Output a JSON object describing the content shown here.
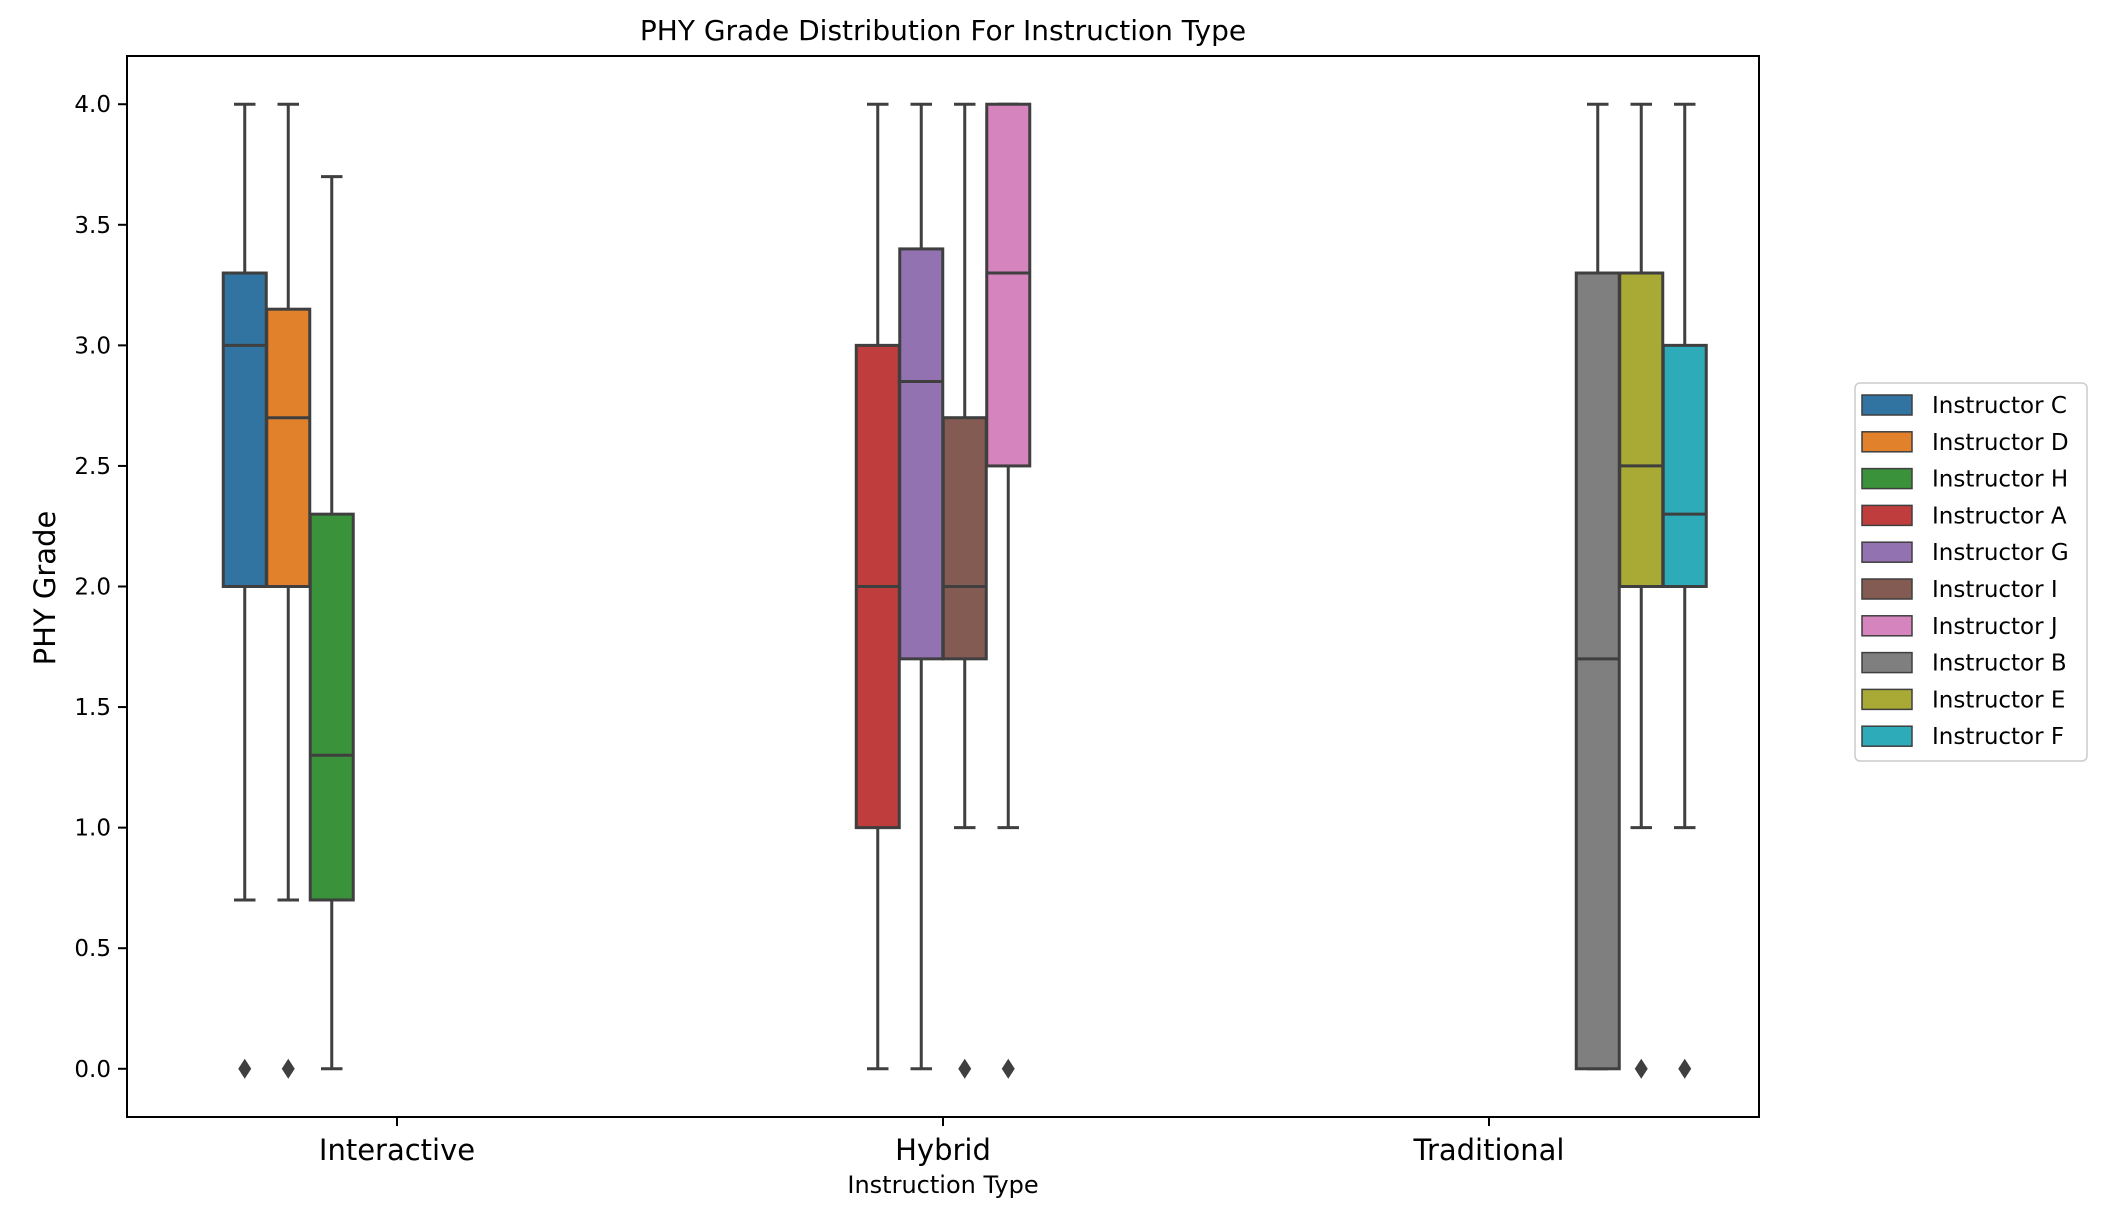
{
  "chart_data": {
    "type": "box",
    "title": "PHY Grade Distribution For Instruction Type",
    "xlabel": "Instruction Type",
    "ylabel": "PHY Grade",
    "ylim": [
      -0.2,
      4.2
    ],
    "yticks": [
      "0.0",
      "0.5",
      "1.0",
      "1.5",
      "2.0",
      "2.5",
      "3.0",
      "3.5",
      "4.0"
    ],
    "categories": [
      "Interactive",
      "Hybrid",
      "Traditional"
    ],
    "legend_position": "right",
    "grid": false,
    "series": [
      {
        "name": "Instructor C",
        "color": "#3274a1",
        "category": "Interactive",
        "offset": -3.5,
        "whisker_low": 0.7,
        "q1": 2.0,
        "median": 3.0,
        "q3": 3.3,
        "whisker_high": 4.0,
        "outliers": [
          0.0
        ]
      },
      {
        "name": "Instructor D",
        "color": "#e1812c",
        "category": "Interactive",
        "offset": -2.5,
        "whisker_low": 0.7,
        "q1": 2.0,
        "median": 2.7,
        "q3": 3.15,
        "whisker_high": 4.0,
        "outliers": [
          0.0
        ]
      },
      {
        "name": "Instructor H",
        "color": "#3a923a",
        "category": "Interactive",
        "offset": -1.5,
        "whisker_low": 0.0,
        "q1": 0.7,
        "median": 1.3,
        "q3": 2.3,
        "whisker_high": 3.7,
        "outliers": []
      },
      {
        "name": "Instructor A",
        "color": "#c03d3e",
        "category": "Hybrid",
        "offset": -1.5,
        "whisker_low": 0.0,
        "q1": 1.0,
        "median": 2.0,
        "q3": 3.0,
        "whisker_high": 4.0,
        "outliers": []
      },
      {
        "name": "Instructor G",
        "color": "#9372b2",
        "category": "Hybrid",
        "offset": -0.5,
        "whisker_low": 0.0,
        "q1": 1.7,
        "median": 2.85,
        "q3": 3.4,
        "whisker_high": 4.0,
        "outliers": []
      },
      {
        "name": "Instructor I",
        "color": "#845b53",
        "category": "Hybrid",
        "offset": 0.5,
        "whisker_low": 1.0,
        "q1": 1.7,
        "median": 2.0,
        "q3": 2.7,
        "whisker_high": 4.0,
        "outliers": [
          0.0
        ]
      },
      {
        "name": "Instructor J",
        "color": "#d684bd",
        "category": "Hybrid",
        "offset": 1.5,
        "whisker_low": 1.0,
        "q1": 2.5,
        "median": 3.3,
        "q3": 4.0,
        "whisker_high": 4.0,
        "outliers": [
          0.0
        ]
      },
      {
        "name": "Instructor B",
        "color": "#7f7f7f",
        "category": "Traditional",
        "offset": 2.5,
        "whisker_low": 0.0,
        "q1": 0.0,
        "median": 1.7,
        "q3": 3.3,
        "whisker_high": 4.0,
        "outliers": []
      },
      {
        "name": "Instructor E",
        "color": "#a9aa35",
        "category": "Traditional",
        "offset": 3.5,
        "whisker_low": 1.0,
        "q1": 2.0,
        "median": 2.5,
        "q3": 3.3,
        "whisker_high": 4.0,
        "outliers": [
          0.0
        ]
      },
      {
        "name": "Instructor F",
        "color": "#2eabb8",
        "category": "Traditional",
        "offset": 4.5,
        "whisker_low": 1.0,
        "q1": 2.0,
        "median": 2.3,
        "q3": 3.0,
        "whisker_high": 4.0,
        "outliers": [
          0.0
        ]
      }
    ]
  }
}
